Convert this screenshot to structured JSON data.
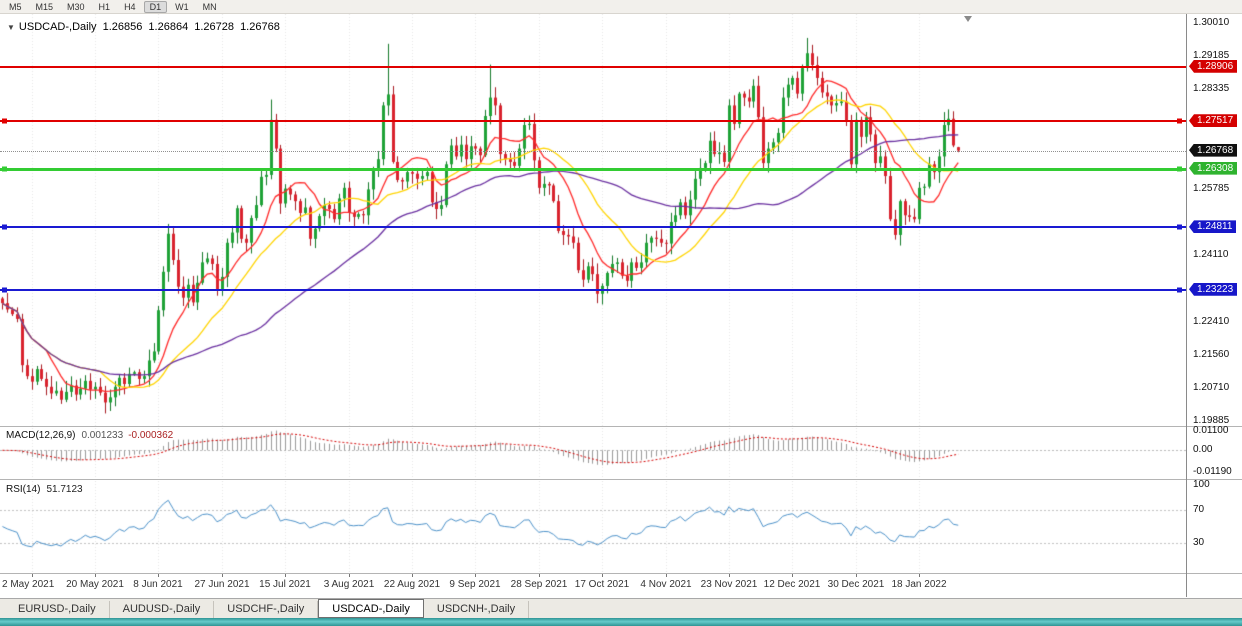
{
  "toolbar": {
    "timeframes": [
      "M5",
      "M15",
      "M30",
      "H1",
      "H4",
      "D1",
      "W1",
      "MN"
    ],
    "active": "D1"
  },
  "chart": {
    "dropdown_icon": "▼",
    "symbol_title": "USDCAD-,Daily",
    "ohlc": "1.26856 1.26864 1.26728 1.26768",
    "current_price": 1.26768,
    "price_axis_labels": [
      "1.30010",
      "1.29185",
      "1.28335",
      "1.25785",
      "1.24110",
      "1.22410",
      "1.21560",
      "1.20710",
      "1.19885"
    ],
    "price_badges": [
      {
        "text": "1.28906",
        "bg": "#d40000"
      },
      {
        "text": "1.27517",
        "bg": "#d40000"
      },
      {
        "text": "1.26768",
        "bg": "#101010"
      },
      {
        "text": "1.26308",
        "bg": "#2fb32f"
      },
      {
        "text": "1.24811",
        "bg": "#1717c9"
      },
      {
        "text": "1.23223",
        "bg": "#1717c9"
      }
    ],
    "levels": [
      {
        "price": 1.28906,
        "color": "#e00000",
        "thickness": 2,
        "endpoints": false
      },
      {
        "price": 1.27517,
        "color": "#e00000",
        "thickness": 2,
        "endpoints": true
      },
      {
        "price": 1.26308,
        "color": "#33cc33",
        "thickness": 3,
        "endpoints": true
      },
      {
        "price": 1.24811,
        "color": "#1a1ad2",
        "thickness": 2,
        "endpoints": true
      },
      {
        "price": 1.23223,
        "color": "#1a1ad2",
        "thickness": 2,
        "endpoints": true
      }
    ]
  },
  "macd": {
    "title": "MACD(12,26,9)",
    "value_main": "0.001233",
    "value_signal": "-0.000362",
    "axis_labels": [
      "0.01100",
      "0.00",
      "-0.01190"
    ],
    "range": [
      -0.0155,
      0.0125
    ],
    "histogram_color": "#9a9a9a",
    "signal_color": "#d40000"
  },
  "rsi": {
    "title": "RSI(14)",
    "value": "51.7123",
    "axis_labels": [
      "100",
      "70",
      "30"
    ],
    "levels": [
      70,
      30
    ],
    "line_color": "#4a90c8"
  },
  "tabs": {
    "items": [
      "EURUSD-,Daily",
      "AUDUSD-,Daily",
      "USDCHF-,Daily",
      "USDCAD-,Daily",
      "USDCNH-,Daily"
    ],
    "active_index": 3
  },
  "chart_data": {
    "type": "candlestick",
    "symbol": "USDCAD",
    "timeframe": "Daily",
    "plot_fraction": 0.81,
    "price_range": [
      1.1975,
      1.3025
    ],
    "colors": {
      "up": "#1fa237",
      "down": "#d9232e",
      "up_wick": "#157a2a",
      "down_wick": "#a81b22"
    },
    "moving_averages": [
      {
        "period": 10,
        "color": "#ff2a2a"
      },
      {
        "period": 21,
        "color": "#ffd400"
      },
      {
        "period": 50,
        "color": "#6a30a0"
      }
    ],
    "x_labels": [
      "2 May 2021",
      "20 May 2021",
      "8 Jun 2021",
      "27 Jun 2021",
      "15 Jul 2021",
      "3 Aug 2021",
      "22 Aug 2021",
      "9 Sep 2021",
      "28 Sep 2021",
      "17 Oct 2021",
      "4 Nov 2021",
      "23 Nov 2021",
      "12 Dec 2021",
      "30 Dec 2021",
      "18 Jan 2022"
    ],
    "tick_bars": [
      6,
      19,
      32,
      45,
      58,
      71,
      84,
      97,
      110,
      123,
      136,
      149,
      162,
      175,
      188
    ],
    "closes": [
      1.2288,
      1.2272,
      1.226,
      1.2248,
      1.213,
      1.2102,
      1.2088,
      1.212,
      1.2095,
      1.2075,
      1.2058,
      1.2065,
      1.2042,
      1.2062,
      1.2078,
      1.2055,
      1.207,
      1.209,
      1.2068,
      1.2075,
      1.206,
      1.2035,
      1.2048,
      1.2075,
      1.2098,
      1.2082,
      1.2108,
      1.2112,
      1.2095,
      1.2102,
      1.2142,
      1.2165,
      1.227,
      1.2368,
      1.2465,
      1.2398,
      1.233,
      1.2302,
      1.2335,
      1.229,
      1.234,
      1.2392,
      1.2402,
      1.2388,
      1.2322,
      1.2355,
      1.2442,
      1.2468,
      1.253,
      1.2452,
      1.2442,
      1.2505,
      1.2538,
      1.261,
      1.2615,
      1.2755,
      1.2682,
      1.2542,
      1.258,
      1.2565,
      1.2548,
      1.2518,
      1.2532,
      1.2452,
      1.2478,
      1.251,
      1.2538,
      1.2528,
      1.2502,
      1.2555,
      1.2582,
      1.2518,
      1.2508,
      1.2515,
      1.2512,
      1.2578,
      1.2628,
      1.2655,
      1.2792,
      1.282,
      1.2648,
      1.2602,
      1.2598,
      1.2622,
      1.2618,
      1.2605,
      1.2612,
      1.2622,
      1.2545,
      1.2528,
      1.2538,
      1.2642,
      1.269,
      1.2662,
      1.2692,
      1.2655,
      1.2688,
      1.2682,
      1.2665,
      1.2765,
      1.2812,
      1.2792,
      1.2668,
      1.2655,
      1.2648,
      1.2638,
      1.2682,
      1.2742,
      1.2745,
      1.2652,
      1.2582,
      1.2592,
      1.2588,
      1.2548,
      1.2472,
      1.2462,
      1.2458,
      1.2442,
      1.2372,
      1.2348,
      1.2382,
      1.2362,
      1.2312,
      1.2332,
      1.2365,
      1.2388,
      1.2392,
      1.2358,
      1.2345,
      1.2392,
      1.2378,
      1.2392,
      1.2442,
      1.2455,
      1.2452,
      1.2442,
      1.244,
      1.2495,
      1.2512,
      1.2545,
      1.2512,
      1.2552,
      1.2605,
      1.2632,
      1.2645,
      1.2702,
      1.2668,
      1.2672,
      1.2648,
      1.2792,
      1.2745,
      1.2822,
      1.2812,
      1.2802,
      1.2842,
      1.2762,
      1.2645,
      1.2682,
      1.2698,
      1.2722,
      1.2812,
      1.2845,
      1.2862,
      1.2822,
      1.2888,
      1.2925,
      1.2895,
      1.2862,
      1.2825,
      1.2815,
      1.2792,
      1.2798,
      1.2802,
      1.2752,
      1.2642,
      1.2755,
      1.2712,
      1.2762,
      1.2718,
      1.2645,
      1.2662,
      1.2612,
      1.2502,
      1.2462,
      1.2548,
      1.2512,
      1.2508,
      1.2502,
      1.2582,
      1.2585,
      1.2642,
      1.2622,
      1.2662,
      1.2742,
      1.2758,
      1.269,
      1.26768
    ],
    "overrides": {
      "21": {
        "low": 1.2007
      },
      "34": {
        "high": 1.249
      },
      "55": {
        "high": 1.2807
      },
      "79": {
        "high": 1.2949
      },
      "100": {
        "high": 1.2896
      },
      "122": {
        "low": 1.2288
      },
      "165": {
        "high": 1.2964
      },
      "183": {
        "low": 1.245
      },
      "193": {
        "high": 1.2775
      },
      "194": {
        "high": 1.2782
      },
      "196": {
        "open": 1.26856,
        "high": 1.26864,
        "low": 1.26728,
        "close": 1.26768
      }
    }
  }
}
